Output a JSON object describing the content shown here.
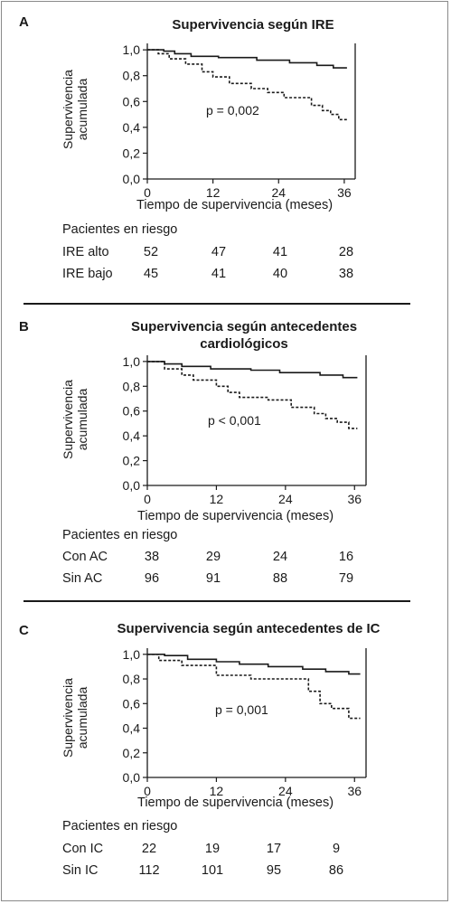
{
  "chart_data": [
    {
      "type": "line",
      "panel": "A",
      "title": "Supervivencia según IRE",
      "xlabel": "Tiempo de supervivencia (meses)",
      "ylabel": [
        "Supervivencia",
        "acumulada"
      ],
      "xlim": [
        0,
        38
      ],
      "ylim": [
        0,
        1.05
      ],
      "xticks": [
        0,
        12,
        24,
        36
      ],
      "yticks": [
        "0,0",
        "0,2",
        "0,4",
        "0,6",
        "0,8",
        "1,0"
      ],
      "annotation": "p = 0,002",
      "series": [
        {
          "style": "solid",
          "x": [
            0,
            3,
            3,
            5,
            5,
            8,
            8,
            13,
            13,
            20,
            20,
            26,
            26,
            31,
            31,
            34,
            34,
            36.5
          ],
          "y": [
            1,
            1,
            0.99,
            0.99,
            0.97,
            0.97,
            0.95,
            0.95,
            0.94,
            0.94,
            0.92,
            0.92,
            0.9,
            0.9,
            0.88,
            0.88,
            0.86,
            0.86
          ]
        },
        {
          "style": "dashed",
          "x": [
            0,
            2,
            2,
            4,
            4,
            7,
            7,
            10,
            10,
            12,
            12,
            15,
            15,
            19,
            19,
            22,
            22,
            25,
            25,
            30,
            30,
            32,
            32,
            33.5,
            33.5,
            35,
            35,
            36.5
          ],
          "y": [
            1,
            1,
            0.97,
            0.97,
            0.93,
            0.93,
            0.89,
            0.89,
            0.83,
            0.83,
            0.79,
            0.79,
            0.74,
            0.74,
            0.7,
            0.7,
            0.67,
            0.67,
            0.63,
            0.63,
            0.57,
            0.57,
            0.53,
            0.53,
            0.5,
            0.5,
            0.46,
            0.46
          ]
        }
      ],
      "risk_table": {
        "header": "Pacientes en riesgo",
        "rows": [
          {
            "label": "IRE alto",
            "values": [
              "52",
              "47",
              "41",
              "28"
            ]
          },
          {
            "label": "IRE bajo",
            "values": [
              "45",
              "41",
              "40",
              "38"
            ]
          }
        ]
      }
    },
    {
      "type": "line",
      "panel": "B",
      "title": "Supervivencia según antecedentes cardiológicos",
      "title_lines": [
        "Supervivencia según antecedentes",
        "cardiológicos"
      ],
      "xlabel": "Tiempo de supervivencia (meses)",
      "ylabel": [
        "Supervivencia",
        "acumulada"
      ],
      "xlim": [
        0,
        38
      ],
      "ylim": [
        0,
        1.05
      ],
      "xticks": [
        0,
        12,
        24,
        36
      ],
      "yticks": [
        "0,0",
        "0,2",
        "0,4",
        "0,6",
        "0,8",
        "1,0"
      ],
      "annotation": "p < 0,001",
      "series": [
        {
          "style": "solid",
          "x": [
            0,
            3,
            3,
            6,
            6,
            11,
            11,
            18,
            18,
            23,
            23,
            30,
            30,
            34,
            34,
            36.5
          ],
          "y": [
            1,
            1,
            0.98,
            0.98,
            0.96,
            0.96,
            0.94,
            0.94,
            0.93,
            0.93,
            0.91,
            0.91,
            0.89,
            0.89,
            0.87,
            0.87
          ]
        },
        {
          "style": "dashed",
          "x": [
            0,
            3,
            3,
            6,
            6,
            8,
            8,
            12,
            12,
            14,
            14,
            16,
            16,
            21,
            21,
            25,
            25,
            29,
            29,
            31,
            31,
            33,
            33,
            35,
            35,
            36.5
          ],
          "y": [
            1,
            1,
            0.94,
            0.94,
            0.89,
            0.89,
            0.85,
            0.85,
            0.8,
            0.8,
            0.75,
            0.75,
            0.71,
            0.71,
            0.69,
            0.69,
            0.63,
            0.63,
            0.58,
            0.58,
            0.54,
            0.54,
            0.51,
            0.51,
            0.46,
            0.46
          ]
        }
      ],
      "risk_table": {
        "header": "Pacientes en riesgo",
        "rows": [
          {
            "label": "Con AC",
            "values": [
              "38",
              "29",
              "24",
              "16"
            ]
          },
          {
            "label": "Sin AC",
            "values": [
              "96",
              "91",
              "88",
              "79"
            ]
          }
        ]
      }
    },
    {
      "type": "line",
      "panel": "C",
      "title": "Supervivencia según antecedentes de IC",
      "xlabel": "Tiempo de supervivencia (meses)",
      "ylabel": [
        "Supervivencia",
        "acumulada"
      ],
      "xlim": [
        0,
        38
      ],
      "ylim": [
        0,
        1.05
      ],
      "xticks": [
        0,
        12,
        24,
        36
      ],
      "yticks": [
        "0,0",
        "0,2",
        "0,4",
        "0,6",
        "0,8",
        "1,0"
      ],
      "annotation": "p = 0,001",
      "series": [
        {
          "style": "solid",
          "x": [
            0,
            3,
            3,
            7,
            7,
            12,
            12,
            16,
            16,
            21,
            21,
            27,
            27,
            31,
            31,
            35,
            35,
            37
          ],
          "y": [
            1,
            1,
            0.99,
            0.99,
            0.96,
            0.96,
            0.94,
            0.94,
            0.92,
            0.92,
            0.9,
            0.9,
            0.88,
            0.88,
            0.86,
            0.86,
            0.84,
            0.84
          ]
        },
        {
          "style": "dashed",
          "x": [
            0,
            2,
            2,
            6,
            6,
            12,
            12,
            18,
            18,
            28,
            28,
            30,
            30,
            32,
            32,
            35,
            35,
            37
          ],
          "y": [
            1,
            1,
            0.95,
            0.95,
            0.91,
            0.91,
            0.83,
            0.83,
            0.8,
            0.8,
            0.7,
            0.7,
            0.6,
            0.6,
            0.56,
            0.56,
            0.48,
            0.48
          ]
        }
      ],
      "risk_table": {
        "header": "Pacientes en riesgo",
        "rows": [
          {
            "label": "Con IC",
            "values": [
              "22",
              "19",
              "17",
              "9"
            ]
          },
          {
            "label": "Sin IC",
            "values": [
              "112",
              "101",
              "95",
              "86"
            ]
          }
        ]
      }
    }
  ]
}
